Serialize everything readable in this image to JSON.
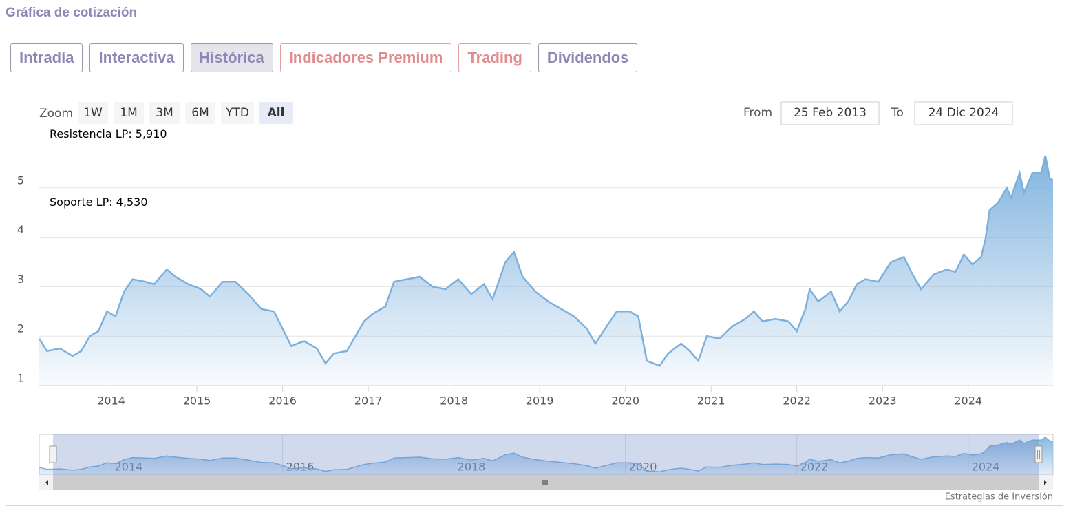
{
  "header": {
    "title": "Gráfica de cotización"
  },
  "tabs": [
    {
      "label": "Intradía",
      "color": "#8e87b5"
    },
    {
      "label": "Interactiva",
      "color": "#8e87b5"
    },
    {
      "label": "Histórica",
      "color": "#8e87b5",
      "active": true
    },
    {
      "label": "Indicadores Premium",
      "color": "#e08c8c"
    },
    {
      "label": "Trading",
      "color": "#e08c8c"
    },
    {
      "label": "Dividendos",
      "color": "#8e87b5"
    }
  ],
  "zoom": {
    "label": "Zoom",
    "buttons": [
      "1W",
      "1M",
      "3M",
      "6M",
      "YTD",
      "All"
    ],
    "active": 5
  },
  "range": {
    "from_label": "From",
    "from": "25 Feb 2013",
    "to_label": "To",
    "to": "24 Dic 2024"
  },
  "credit": "Estrategias de Inversión",
  "chart_data": {
    "type": "area",
    "x": [
      2013.16,
      2013.25,
      2013.4,
      2013.55,
      2013.65,
      2013.75,
      2013.85,
      2013.95,
      2014.05,
      2014.15,
      2014.25,
      2014.4,
      2014.5,
      2014.65,
      2014.75,
      2014.9,
      2015.05,
      2015.15,
      2015.3,
      2015.45,
      2015.6,
      2015.75,
      2015.9,
      2016.0,
      2016.1,
      2016.25,
      2016.4,
      2016.5,
      2016.6,
      2016.75,
      2016.85,
      2016.95,
      2017.05,
      2017.2,
      2017.3,
      2017.45,
      2017.6,
      2017.75,
      2017.9,
      2018.05,
      2018.2,
      2018.35,
      2018.45,
      2018.6,
      2018.7,
      2018.8,
      2018.95,
      2019.1,
      2019.25,
      2019.4,
      2019.55,
      2019.65,
      2019.8,
      2019.9,
      2020.05,
      2020.15,
      2020.25,
      2020.4,
      2020.5,
      2020.65,
      2020.75,
      2020.85,
      2020.95,
      2021.1,
      2021.25,
      2021.4,
      2021.5,
      2021.6,
      2021.75,
      2021.9,
      2022.0,
      2022.1,
      2022.15,
      2022.25,
      2022.4,
      2022.5,
      2022.6,
      2022.7,
      2022.8,
      2022.95,
      2023.1,
      2023.25,
      2023.35,
      2023.45,
      2023.6,
      2023.75,
      2023.85,
      2023.95,
      2024.05,
      2024.15,
      2024.2,
      2024.25,
      2024.35,
      2024.45,
      2024.5,
      2024.6,
      2024.65,
      2024.75,
      2024.85,
      2024.9,
      2024.95,
      2024.99
    ],
    "series": [
      {
        "color": "#7cb0de",
        "values": [
          1.95,
          1.7,
          1.75,
          1.6,
          1.7,
          2.0,
          2.1,
          2.5,
          2.4,
          2.9,
          3.15,
          3.1,
          3.05,
          3.35,
          3.2,
          3.05,
          2.95,
          2.8,
          3.1,
          3.1,
          2.85,
          2.55,
          2.5,
          2.15,
          1.8,
          1.9,
          1.75,
          1.45,
          1.65,
          1.7,
          2.0,
          2.3,
          2.45,
          2.6,
          3.1,
          3.15,
          3.2,
          3.0,
          2.95,
          3.15,
          2.85,
          3.05,
          2.75,
          3.5,
          3.7,
          3.2,
          2.9,
          2.7,
          2.55,
          2.4,
          2.15,
          1.85,
          2.25,
          2.5,
          2.5,
          2.4,
          1.5,
          1.4,
          1.65,
          1.85,
          1.7,
          1.5,
          2.0,
          1.95,
          2.2,
          2.35,
          2.5,
          2.3,
          2.35,
          2.3,
          2.1,
          2.55,
          2.95,
          2.7,
          2.9,
          2.5,
          2.7,
          3.05,
          3.15,
          3.1,
          3.5,
          3.6,
          3.25,
          2.95,
          3.25,
          3.35,
          3.3,
          3.65,
          3.45,
          3.6,
          3.95,
          4.55,
          4.7,
          5.0,
          4.8,
          5.3,
          4.9,
          5.3,
          5.3,
          5.65,
          5.2,
          5.15
        ]
      }
    ],
    "xlim": [
      2013.16,
      2024.99
    ],
    "xticks": [
      2014,
      2015,
      2016,
      2017,
      2018,
      2019,
      2020,
      2021,
      2022,
      2023,
      2024
    ],
    "ylim": [
      1,
      6
    ],
    "yticks": [
      1,
      2,
      3,
      4,
      5
    ],
    "grid": true,
    "levels": [
      {
        "label": "Resistencia LP: 5,910",
        "value": 5.91,
        "color": "#2e8b2e"
      },
      {
        "label": "Soporte LP: 4,530",
        "value": 4.53,
        "color": "#9b1c1c"
      }
    ],
    "navigator_xticks": [
      2014,
      2016,
      2018,
      2020,
      2022,
      2024
    ]
  }
}
